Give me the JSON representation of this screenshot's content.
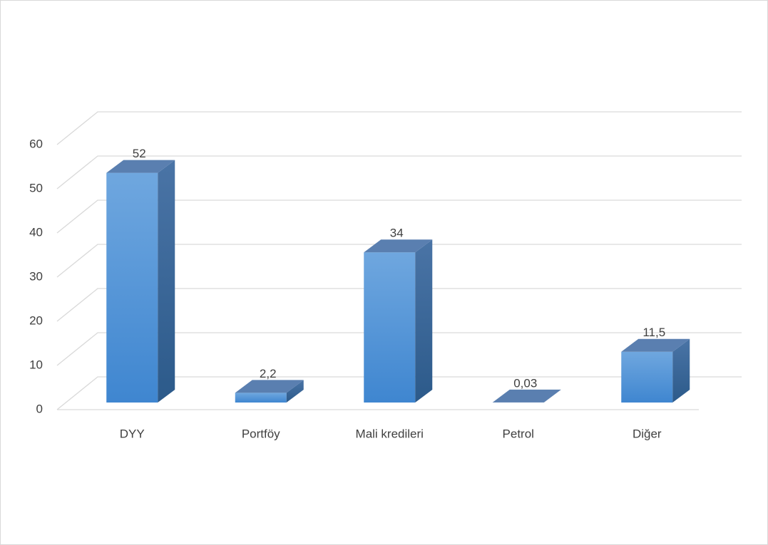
{
  "chart_data": {
    "type": "bar3d",
    "categories": [
      "DYY",
      "Portföy",
      "Mali kredileri",
      "Petrol",
      "Diğer"
    ],
    "values": [
      52,
      2.2,
      34,
      0.03,
      11.5
    ],
    "value_labels": [
      "52",
      "2,2",
      "34",
      "0,03",
      "11,5"
    ],
    "color": "#4a90d9",
    "ylim": [
      0,
      60
    ],
    "yticks": [
      0,
      10,
      20,
      30,
      40,
      50,
      60
    ],
    "grid": true
  }
}
